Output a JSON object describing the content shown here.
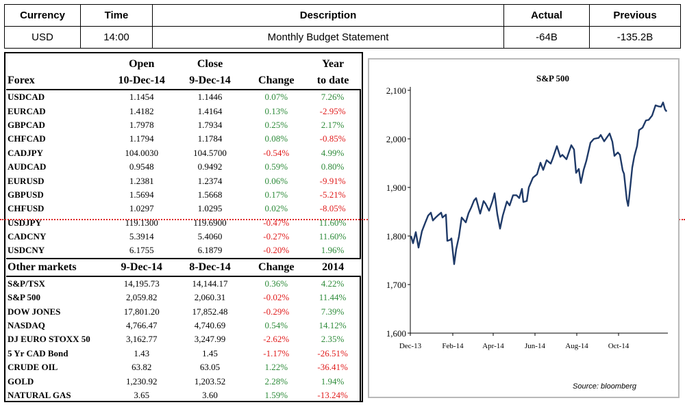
{
  "calendar": {
    "headers": [
      "Currency",
      "Time",
      "Description",
      "Actual",
      "Previous"
    ],
    "row": {
      "currency": "USD",
      "time": "14:00",
      "description": "Monthly Budget Statement",
      "actual": "-64B",
      "previous": "-135.2B"
    }
  },
  "forex": {
    "header_top": {
      "open": "Open",
      "close": "Close",
      "year": "Year"
    },
    "header_bottom": {
      "label": "Forex",
      "open": "10-Dec-14",
      "close": "9-Dec-14",
      "change": "Change",
      "ytd": "to date"
    },
    "rows": [
      {
        "name": "USDCAD",
        "open": "1.1454",
        "close": "1.1446",
        "change": "0.07%",
        "ytd": "7.26%"
      },
      {
        "name": "EURCAD",
        "open": "1.4182",
        "close": "1.4164",
        "change": "0.13%",
        "ytd": "-2.95%"
      },
      {
        "name": "GBPCAD",
        "open": "1.7978",
        "close": "1.7934",
        "change": "0.25%",
        "ytd": "2.17%"
      },
      {
        "name": "CHFCAD",
        "open": "1.1794",
        "close": "1.1784",
        "change": "0.08%",
        "ytd": "-0.85%"
      },
      {
        "name": "CADJPY",
        "open": "104.0030",
        "close": "104.5700",
        "change": "-0.54%",
        "ytd": "4.99%"
      },
      {
        "name": "AUDCAD",
        "open": "0.9548",
        "close": "0.9492",
        "change": "0.59%",
        "ytd": "0.80%"
      },
      {
        "name": "EURUSD",
        "open": "1.2381",
        "close": "1.2374",
        "change": "0.06%",
        "ytd": "-9.91%"
      },
      {
        "name": "GBPUSD",
        "open": "1.5694",
        "close": "1.5668",
        "change": "0.17%",
        "ytd": "-5.21%"
      },
      {
        "name": "CHFUSD",
        "open": "1.0297",
        "close": "1.0295",
        "change": "0.02%",
        "ytd": "-8.05%"
      },
      {
        "name": "USDJPY",
        "open": "119.1300",
        "close": "119.6900",
        "change": "-0.47%",
        "ytd": "11.60%"
      },
      {
        "name": "CADCNY",
        "open": "5.3914",
        "close": "5.4060",
        "change": "-0.27%",
        "ytd": "11.60%"
      },
      {
        "name": "USDCNY",
        "open": "6.1755",
        "close": "6.1879",
        "change": "-0.20%",
        "ytd": "1.96%"
      }
    ]
  },
  "other_markets": {
    "header": {
      "label": "Other markets",
      "d1": "9-Dec-14",
      "d2": "8-Dec-14",
      "change": "Change",
      "year": "2014"
    },
    "rows": [
      {
        "name": "S&P/TSX",
        "d1": "14,195.73",
        "d2": "14,144.17",
        "change": "0.36%",
        "ytd": "4.22%"
      },
      {
        "name": "S&P 500",
        "d1": "2,059.82",
        "d2": "2,060.31",
        "change": "-0.02%",
        "ytd": "11.44%"
      },
      {
        "name": "DOW JONES",
        "d1": "17,801.20",
        "d2": "17,852.48",
        "change": "-0.29%",
        "ytd": "7.39%"
      },
      {
        "name": "NASDAQ",
        "d1": "4,766.47",
        "d2": "4,740.69",
        "change": "0.54%",
        "ytd": "14.12%"
      },
      {
        "name": "DJ EURO STOXX 50",
        "d1": "3,162.77",
        "d2": "3,247.99",
        "change": "-2.62%",
        "ytd": "2.35%"
      },
      {
        "name": "5 Yr CAD Bond",
        "d1": "1.43",
        "d2": "1.45",
        "change": "-1.17%",
        "ytd": "-26.51%"
      },
      {
        "name": "CRUDE OIL",
        "d1": "63.82",
        "d2": "63.05",
        "change": "1.22%",
        "ytd": "-36.41%"
      },
      {
        "name": "GOLD",
        "d1": "1,230.92",
        "d2": "1,203.52",
        "change": "2.28%",
        "ytd": "1.94%"
      },
      {
        "name": "NATURAL GAS",
        "d1": "3.65",
        "d2": "3.60",
        "change": "1.59%",
        "ytd": "-13.24%"
      }
    ]
  },
  "colors": {
    "positive": "#2e8b3a",
    "negative": "#e01b1b",
    "line": "#1f3a68",
    "divider": "#d22222"
  },
  "chart_data": {
    "type": "line",
    "title": "S&P 500",
    "source": "Source: bloomberg",
    "xlabel": "",
    "ylabel": "",
    "ylim": [
      1600,
      2100
    ],
    "yticks": [
      1600,
      1700,
      1800,
      1900,
      2000,
      2100
    ],
    "ytick_labels": [
      "1,600",
      "1,700",
      "1,800",
      "1,900",
      "2,000",
      "2,100"
    ],
    "xlim": [
      "2013-12-01",
      "2014-12-12"
    ],
    "xticks": [
      {
        "date": "2013-12-01",
        "label": "Dec-13"
      },
      {
        "date": "2014-02-01",
        "label": "Feb-14"
      },
      {
        "date": "2014-04-01",
        "label": "Apr-14"
      },
      {
        "date": "2014-06-01",
        "label": "Jun-14"
      },
      {
        "date": "2014-08-01",
        "label": "Aug-14"
      },
      {
        "date": "2014-10-01",
        "label": "Oct-14"
      }
    ],
    "grid": false,
    "series": [
      {
        "points": [
          [
            "2013-12-02",
            1800
          ],
          [
            "2013-12-05",
            1785
          ],
          [
            "2013-12-09",
            1808
          ],
          [
            "2013-12-13",
            1776
          ],
          [
            "2013-12-18",
            1810
          ],
          [
            "2013-12-23",
            1828
          ],
          [
            "2013-12-27",
            1842
          ],
          [
            "2013-12-31",
            1848
          ],
          [
            "2014-01-03",
            1832
          ],
          [
            "2014-01-07",
            1838
          ],
          [
            "2014-01-10",
            1842
          ],
          [
            "2014-01-15",
            1848
          ],
          [
            "2014-01-17",
            1838
          ],
          [
            "2014-01-22",
            1844
          ],
          [
            "2014-01-24",
            1790
          ],
          [
            "2014-01-28",
            1792
          ],
          [
            "2014-01-30",
            1795
          ],
          [
            "2014-02-03",
            1742
          ],
          [
            "2014-02-06",
            1773
          ],
          [
            "2014-02-10",
            1799
          ],
          [
            "2014-02-14",
            1838
          ],
          [
            "2014-02-20",
            1828
          ],
          [
            "2014-02-24",
            1847
          ],
          [
            "2014-02-28",
            1859
          ],
          [
            "2014-03-04",
            1873
          ],
          [
            "2014-03-07",
            1878
          ],
          [
            "2014-03-13",
            1846
          ],
          [
            "2014-03-18",
            1872
          ],
          [
            "2014-03-21",
            1866
          ],
          [
            "2014-03-26",
            1852
          ],
          [
            "2014-03-31",
            1872
          ],
          [
            "2014-04-03",
            1888
          ],
          [
            "2014-04-07",
            1845
          ],
          [
            "2014-04-11",
            1815
          ],
          [
            "2014-04-15",
            1842
          ],
          [
            "2014-04-21",
            1871
          ],
          [
            "2014-04-25",
            1863
          ],
          [
            "2014-04-30",
            1884
          ],
          [
            "2014-05-05",
            1884
          ],
          [
            "2014-05-09",
            1878
          ],
          [
            "2014-05-13",
            1897
          ],
          [
            "2014-05-15",
            1870
          ],
          [
            "2014-05-20",
            1872
          ],
          [
            "2014-05-23",
            1900
          ],
          [
            "2014-05-29",
            1920
          ],
          [
            "2014-06-04",
            1927
          ],
          [
            "2014-06-09",
            1951
          ],
          [
            "2014-06-13",
            1936
          ],
          [
            "2014-06-18",
            1956
          ],
          [
            "2014-06-24",
            1949
          ],
          [
            "2014-06-27",
            1960
          ],
          [
            "2014-07-03",
            1985
          ],
          [
            "2014-07-08",
            1963
          ],
          [
            "2014-07-11",
            1967
          ],
          [
            "2014-07-17",
            1958
          ],
          [
            "2014-07-24",
            1987
          ],
          [
            "2014-07-28",
            1978
          ],
          [
            "2014-07-31",
            1930
          ],
          [
            "2014-08-04",
            1938
          ],
          [
            "2014-08-07",
            1909
          ],
          [
            "2014-08-11",
            1936
          ],
          [
            "2014-08-15",
            1955
          ],
          [
            "2014-08-21",
            1992
          ],
          [
            "2014-08-26",
            2000
          ],
          [
            "2014-09-02",
            2002
          ],
          [
            "2014-09-05",
            2008
          ],
          [
            "2014-09-10",
            1995
          ],
          [
            "2014-09-18",
            2011
          ],
          [
            "2014-09-22",
            1994
          ],
          [
            "2014-09-25",
            1965
          ],
          [
            "2014-09-30",
            1972
          ],
          [
            "2014-10-03",
            1967
          ],
          [
            "2014-10-07",
            1935
          ],
          [
            "2014-10-09",
            1928
          ],
          [
            "2014-10-13",
            1875
          ],
          [
            "2014-10-15",
            1862
          ],
          [
            "2014-10-17",
            1886
          ],
          [
            "2014-10-21",
            1941
          ],
          [
            "2014-10-24",
            1964
          ],
          [
            "2014-10-28",
            1985
          ],
          [
            "2014-10-31",
            2018
          ],
          [
            "2014-11-05",
            2023
          ],
          [
            "2014-11-10",
            2038
          ],
          [
            "2014-11-14",
            2039
          ],
          [
            "2014-11-19",
            2048
          ],
          [
            "2014-11-24",
            2069
          ],
          [
            "2014-11-28",
            2067
          ],
          [
            "2014-12-02",
            2066
          ],
          [
            "2014-12-05",
            2075
          ],
          [
            "2014-12-08",
            2060
          ],
          [
            "2014-12-09",
            2059
          ],
          [
            "2014-12-10",
            2056
          ]
        ]
      }
    ]
  }
}
